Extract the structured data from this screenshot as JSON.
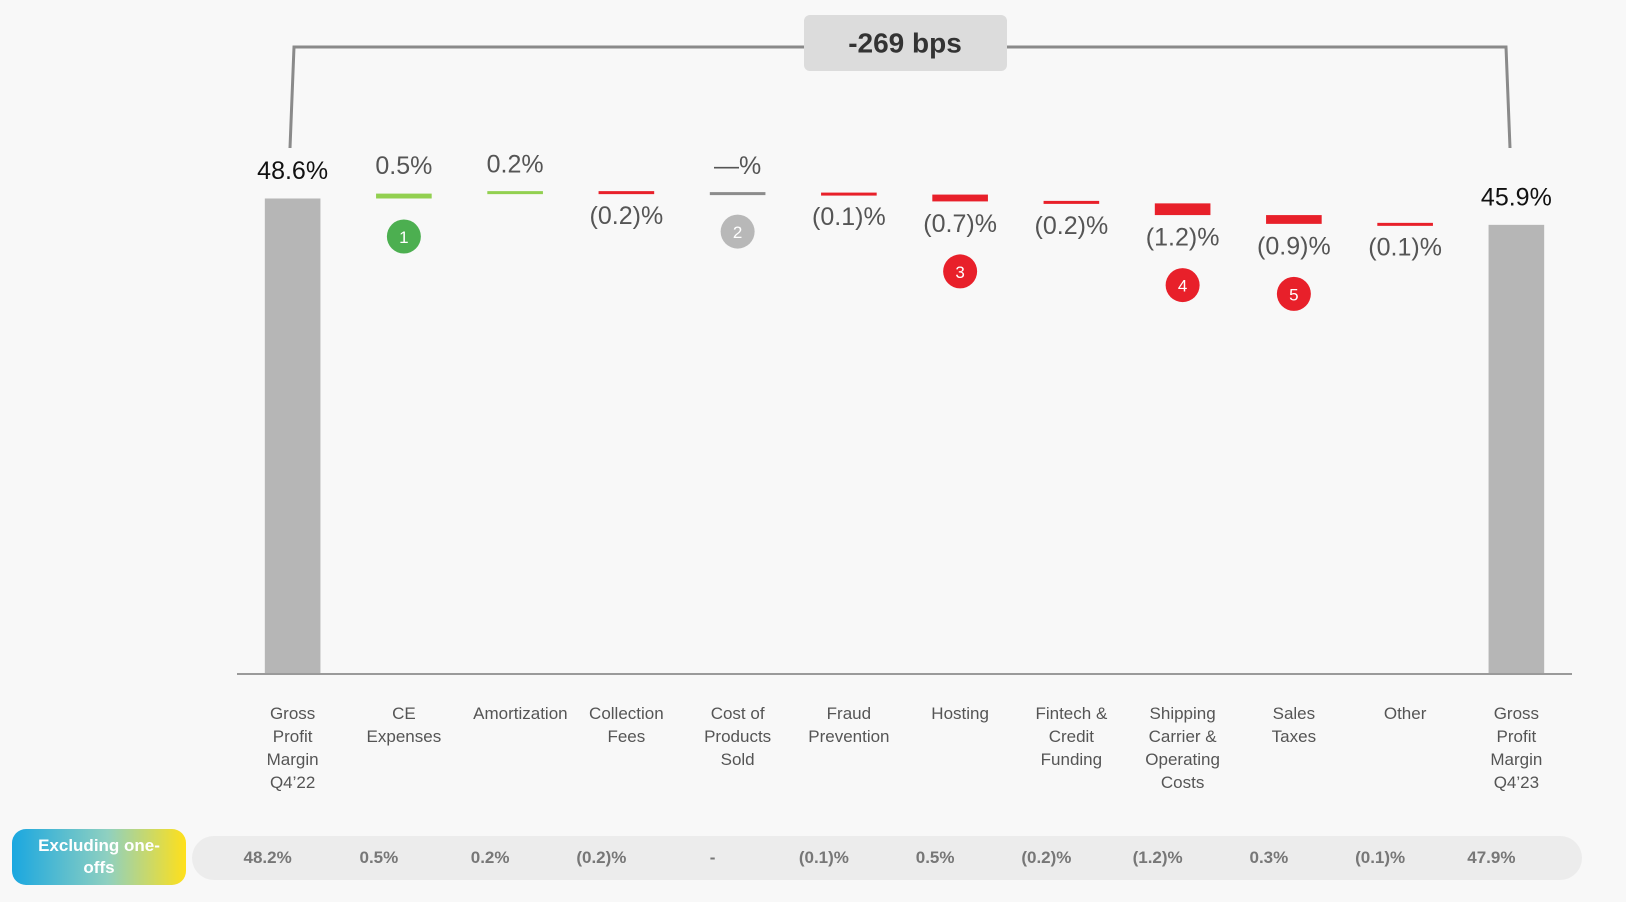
{
  "chart_data": {
    "type": "waterfall",
    "annotation": "-269 bps",
    "categories": [
      "Gross Profit Margin Q4’22",
      "CE Expenses",
      "Amortization",
      "Collection Fees",
      "Cost of Products Sold",
      "Fraud Prevention",
      "Hosting",
      "Fintech & Credit Funding",
      "Shipping Carrier & Operating Costs",
      "Sales Taxes",
      "Other",
      "Gross Profit Margin Q4’23"
    ],
    "kinds": [
      "total",
      "delta",
      "delta",
      "delta",
      "delta",
      "delta",
      "delta",
      "delta",
      "delta",
      "delta",
      "delta",
      "total"
    ],
    "values": [
      48.6,
      0.5,
      0.2,
      -0.2,
      0,
      -0.1,
      -0.7,
      -0.2,
      -1.2,
      -0.9,
      -0.1,
      45.9
    ],
    "value_labels": [
      "48.6%",
      "0.5%",
      "0.2%",
      "(0.2)%",
      "—%",
      "(0.1)%",
      "(0.7)%",
      "(0.2)%",
      "(1.2)%",
      "(0.9)%",
      "(0.1)%",
      "45.9%"
    ],
    "colors": {
      "total": "#b6b6b6",
      "increase": "#92d050",
      "decrease": "#e8202a",
      "zero": "#8c8c8c"
    },
    "markers": [
      null,
      "1",
      null,
      null,
      "2",
      null,
      "3",
      null,
      "4",
      "5",
      null,
      null
    ],
    "marker_colors": [
      null,
      "#4caf50",
      null,
      null,
      "#b8b8b8",
      null,
      "#e8202a",
      null,
      "#e8202a",
      "#e8202a",
      null,
      null
    ],
    "ylim": [
      0,
      55
    ],
    "excluding_one_offs": {
      "label": "Excluding one-offs",
      "values": [
        "48.2%",
        "0.5%",
        "0.2%",
        "(0.2)%",
        "-",
        "(0.1)%",
        "0.5%",
        "(0.2)%",
        "(1.2)%",
        "0.3%",
        "(0.1)%",
        "47.9%"
      ]
    }
  }
}
